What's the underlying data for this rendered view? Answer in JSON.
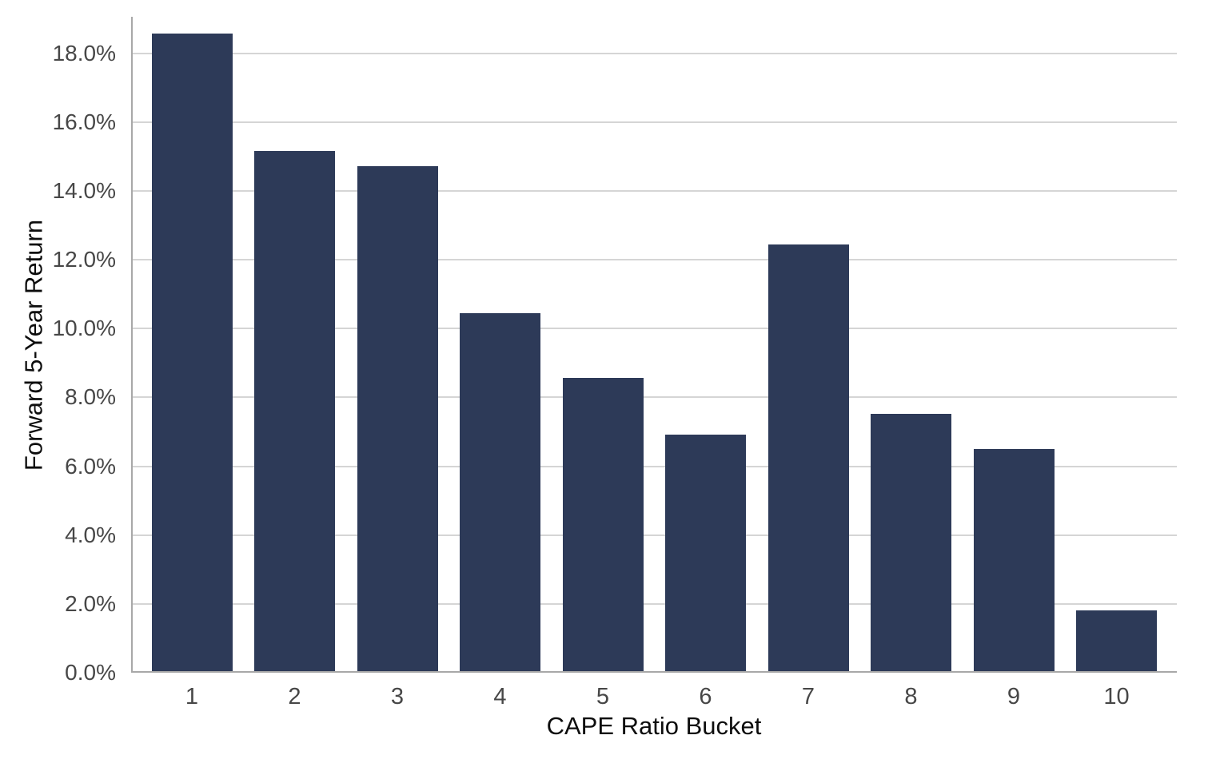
{
  "chart_data": {
    "type": "bar",
    "categories": [
      "1",
      "2",
      "3",
      "4",
      "5",
      "6",
      "7",
      "8",
      "9",
      "10"
    ],
    "values": [
      18.57,
      15.17,
      14.73,
      10.44,
      8.56,
      6.92,
      12.45,
      7.53,
      6.5,
      1.8
    ],
    "title": "",
    "xlabel": "CAPE Ratio Bucket",
    "ylabel": "Forward 5-Year Return",
    "ylim": [
      0,
      19.06
    ],
    "yticks": [
      0,
      2,
      4,
      6,
      8,
      10,
      12,
      14,
      16,
      18
    ],
    "ytick_suffix": "%",
    "grid": true,
    "legend": false,
    "colors": {
      "bar": "#2d3a58",
      "gridline": "#d5d5d5",
      "spine": "#a8a8a8",
      "tick_label": "#474747",
      "axis_title": "#0d0d0d",
      "background": "#ffffff"
    }
  }
}
